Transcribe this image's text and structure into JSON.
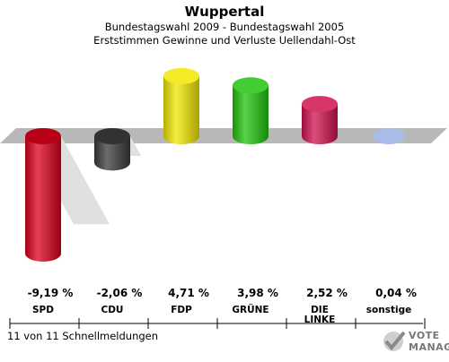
{
  "header": {
    "title": "Wuppertal",
    "subtitle1": "Bundestagswahl 2009 - Bundestagswahl 2005",
    "subtitle2": "Erststimmen Gewinne und Verluste Uellendahl-Ost"
  },
  "footer": {
    "text": "11 von 11 Schnellmeldungen"
  },
  "logo": {
    "line1": "VOTE",
    "line2": "MANAGER"
  },
  "chart_data": {
    "type": "bar",
    "categories": [
      "SPD",
      "CDU",
      "FDP",
      "GRÜNE",
      "DIE LINKE",
      "sonstige"
    ],
    "value_labels": [
      "-9,19 %",
      "-2,06 %",
      "4,71 %",
      "3,98 %",
      "2,52 %",
      "0,04 %"
    ],
    "values": [
      -9.19,
      -2.06,
      4.71,
      3.98,
      2.52,
      0.04
    ],
    "colors": [
      "#d9001b",
      "#3b3b3b",
      "#f2e800",
      "#22c40e",
      "#d0134f",
      "#a9bde8"
    ],
    "title": "Wuppertal",
    "grid": false
  }
}
